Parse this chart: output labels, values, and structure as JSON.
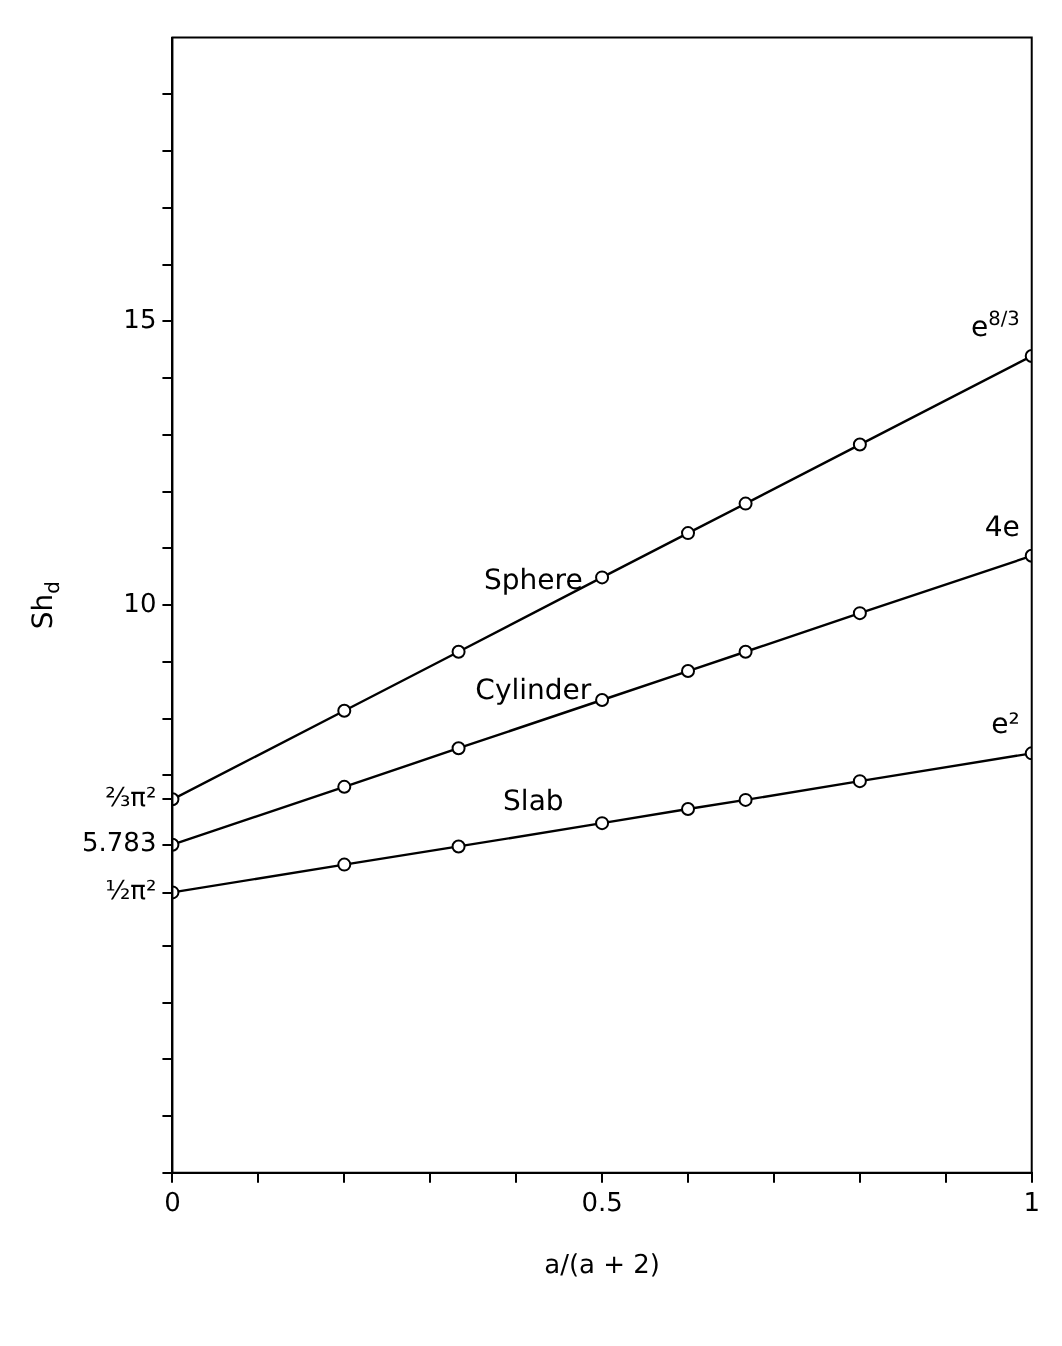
{
  "chart_data": {
    "type": "line",
    "xlabel": "a/(a + 2)",
    "ylabel": "Sh$_{d}$",
    "xlim": [
      0,
      1
    ],
    "ylim": [
      0,
      20
    ],
    "xticks": [
      0,
      {
        "value": 0.1,
        "label": null
      },
      {
        "value": 0.2,
        "label": null
      },
      {
        "value": 0.3,
        "label": null
      },
      {
        "value": 0.4,
        "label": null
      },
      0.5,
      {
        "value": 0.6,
        "label": null
      },
      {
        "value": 0.7,
        "label": null
      },
      {
        "value": 0.8,
        "label": null
      },
      {
        "value": 0.9,
        "label": null
      },
      1
    ],
    "yticks": [
      {
        "value": 0,
        "label": null
      },
      {
        "value": 1,
        "label": null
      },
      {
        "value": 2,
        "label": null
      },
      {
        "value": 3,
        "label": null
      },
      {
        "value": 4,
        "label": null
      },
      {
        "value": 4.935,
        "label": "½π²"
      },
      {
        "value": 5.783,
        "label": "5.783"
      },
      {
        "value": 6.58,
        "label": "⅔π²"
      },
      {
        "value": 7,
        "label": null
      },
      {
        "value": 8,
        "label": null
      },
      {
        "value": 9,
        "label": null
      },
      10,
      {
        "value": 11,
        "label": null
      },
      {
        "value": 12,
        "label": null
      },
      {
        "value": 13,
        "label": null
      },
      {
        "value": 14,
        "label": null
      },
      15,
      {
        "value": 16,
        "label": null
      },
      {
        "value": 17,
        "label": null
      },
      {
        "value": 18,
        "label": null
      },
      {
        "value": 19,
        "label": null
      }
    ],
    "x": [
      0,
      0.2,
      0.333,
      0.5,
      0.6,
      0.667,
      0.8,
      1
    ],
    "series": [
      {
        "name": "Sphere",
        "color": "#000000",
        "values": [
          6.58,
          8.14,
          9.18,
          10.49,
          11.27,
          11.79,
          12.83,
          14.39
        ]
      },
      {
        "name": "Cylinder",
        "color": "#000000",
        "values": [
          5.78,
          6.8,
          7.48,
          8.33,
          8.84,
          9.18,
          9.86,
          10.87
        ]
      },
      {
        "name": "Slab",
        "color": "#000000",
        "values": [
          4.94,
          5.43,
          5.75,
          6.16,
          6.41,
          6.57,
          6.9,
          7.39
        ]
      }
    ],
    "marker": "circle",
    "line_style": "solid",
    "grid": false,
    "legend": false,
    "annotations": [
      "e$^{8/3}$",
      "4e",
      "e²"
    ]
  }
}
